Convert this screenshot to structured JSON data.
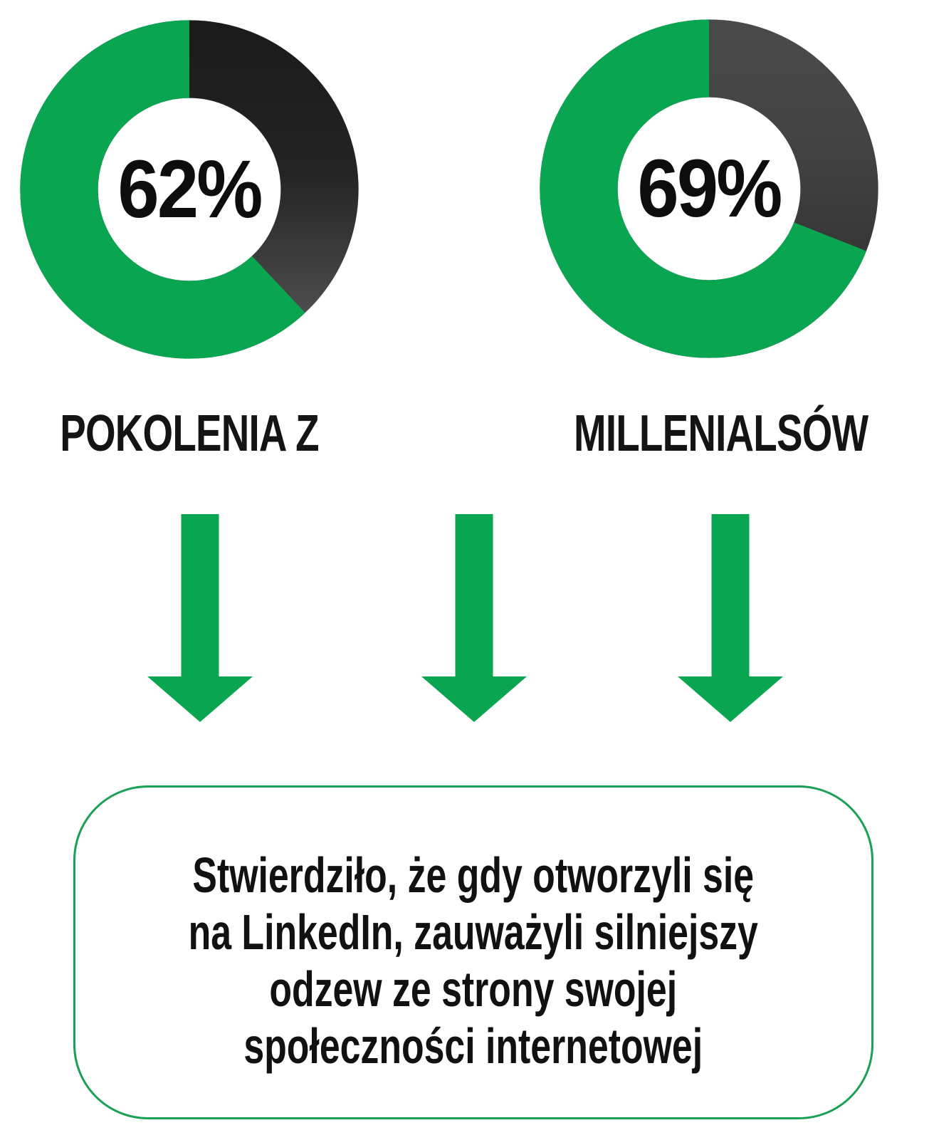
{
  "page": {
    "background": "#ffffff"
  },
  "colors": {
    "green": "#0aa551",
    "text": "#111111",
    "callout_border": "#1ba155"
  },
  "chart_data": [
    {
      "type": "pie",
      "subtype": "donut",
      "title": "POKOLENIA Z",
      "center_label": "62%",
      "slices": [
        {
          "name": "highlighted",
          "value": 62,
          "color": "#0aa551"
        },
        {
          "name": "remainder",
          "value": 38,
          "color": "#2a2a2a"
        }
      ],
      "remainder_gradient": [
        "#1a1a1a",
        "#242424",
        "#505050"
      ],
      "start_angle_deg": 0,
      "direction": "counterclockwise",
      "legend": "none"
    },
    {
      "type": "pie",
      "subtype": "donut",
      "title": "MILLENIALSÓW",
      "center_label": "69%",
      "slices": [
        {
          "name": "highlighted",
          "value": 69,
          "color": "#0aa551"
        },
        {
          "name": "remainder",
          "value": 31,
          "color": "#3d3d3d"
        }
      ],
      "remainder_gradient": [
        "#4a4a4a",
        "#424242",
        "#2f2f2f"
      ],
      "start_angle_deg": 0,
      "direction": "counterclockwise",
      "legend": "none"
    }
  ],
  "arrows": {
    "count": 3,
    "direction": "down",
    "color": "#0aa551"
  },
  "callout": {
    "text": "Stwierdziło, że gdy otworzyli się na LinkedIn, zauważyli silniejszy odzew ze strony swojej społeczności internetowej",
    "lines": [
      "Stwierdziło, że gdy otworzyli się",
      "na LinkedIn, zauważyli silniejszy",
      "odzew ze strony swojej",
      "społeczności internetowej"
    ]
  }
}
